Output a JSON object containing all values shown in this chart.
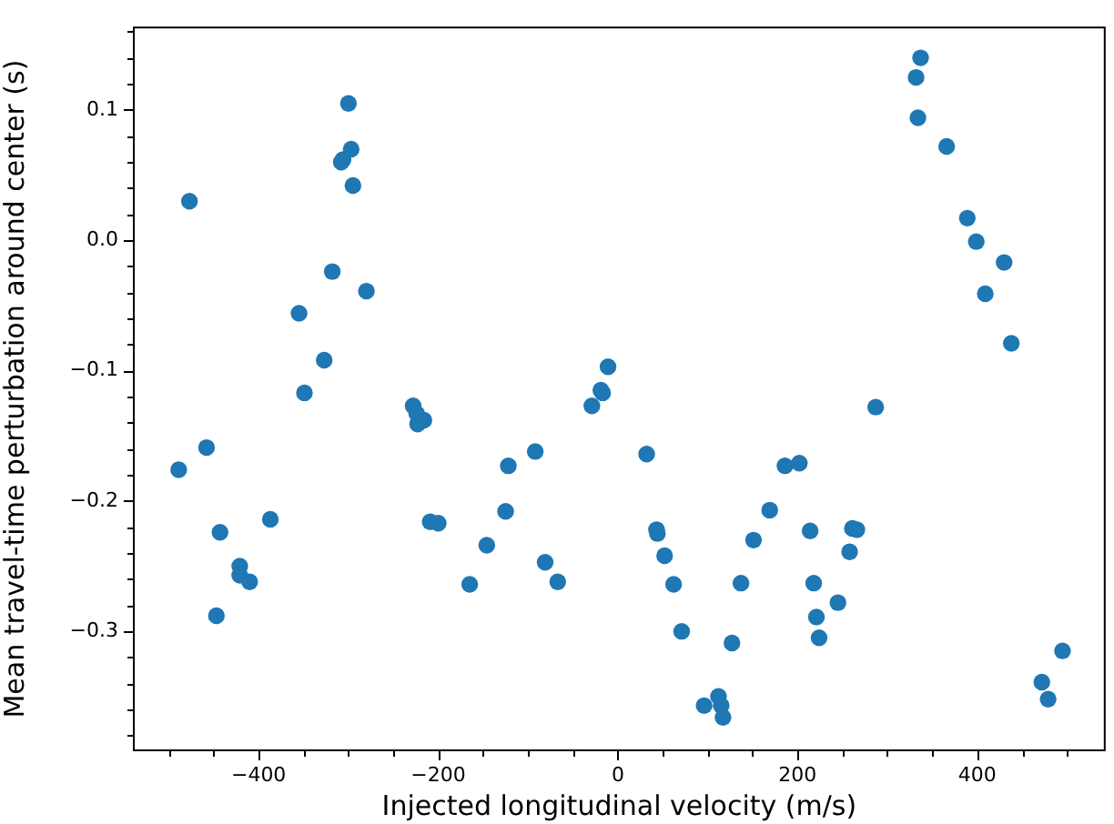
{
  "chart_data": {
    "type": "scatter",
    "xlabel": "Injected longitudinal velocity (m/s)",
    "ylabel": "Mean travel-time perturbation around center (s)",
    "marker": "circle",
    "grid": false,
    "legend": false,
    "xlim": [
      -540,
      543
    ],
    "ylim": [
      -0.392,
      0.164
    ],
    "xticks": [
      {
        "value": -500,
        "label": null
      },
      {
        "value": -450,
        "label": null
      },
      {
        "value": -400,
        "label": "−400"
      },
      {
        "value": -350,
        "label": null
      },
      {
        "value": -300,
        "label": null
      },
      {
        "value": -250,
        "label": null
      },
      {
        "value": -200,
        "label": "−200"
      },
      {
        "value": -150,
        "label": null
      },
      {
        "value": -100,
        "label": null
      },
      {
        "value": -50,
        "label": null
      },
      0,
      {
        "value": 50,
        "label": null
      },
      {
        "value": 100,
        "label": null
      },
      {
        "value": 150,
        "label": null
      },
      200,
      {
        "value": 250,
        "label": null
      },
      {
        "value": 300,
        "label": null
      },
      {
        "value": 350,
        "label": null
      },
      400,
      {
        "value": 450,
        "label": null
      },
      {
        "value": 500,
        "label": null
      }
    ],
    "yticks": [
      {
        "value": -0.38,
        "label": null
      },
      {
        "value": -0.36,
        "label": null
      },
      {
        "value": -0.34,
        "label": null
      },
      {
        "value": -0.32,
        "label": null
      },
      {
        "value": -0.3,
        "label": "−0.3"
      },
      {
        "value": -0.28,
        "label": null
      },
      {
        "value": -0.26,
        "label": null
      },
      {
        "value": -0.24,
        "label": null
      },
      {
        "value": -0.22,
        "label": null
      },
      {
        "value": -0.2,
        "label": "−0.2"
      },
      {
        "value": -0.18,
        "label": null
      },
      {
        "value": -0.16,
        "label": null
      },
      {
        "value": -0.14,
        "label": null
      },
      {
        "value": -0.12,
        "label": null
      },
      {
        "value": -0.1,
        "label": "−0.1"
      },
      {
        "value": -0.08,
        "label": null
      },
      {
        "value": -0.06,
        "label": null
      },
      {
        "value": -0.04,
        "label": null
      },
      {
        "value": -0.02,
        "label": null
      },
      {
        "value": 0,
        "label": "0.0"
      },
      {
        "value": 0.02,
        "label": null
      },
      {
        "value": 0.04,
        "label": null
      },
      {
        "value": 0.06,
        "label": null
      },
      {
        "value": 0.08,
        "label": null
      },
      0.1,
      {
        "value": 0.12,
        "label": null
      },
      {
        "value": 0.14,
        "label": null
      },
      {
        "value": 0.16,
        "label": null
      }
    ],
    "series": [
      {
        "color": "#1f77b4",
        "x": [
          -477,
          -300,
          -297,
          -308,
          -306,
          -295,
          -318,
          -355,
          -280,
          -327,
          -349,
          -489,
          -458,
          -443,
          -387,
          -421,
          -421,
          -410,
          -447,
          -228,
          -224,
          -223,
          -216,
          -209,
          -200,
          -146,
          -165,
          -122,
          -92,
          -125,
          -81,
          -67,
          -29,
          -19,
          -17,
          -11,
          337,
          332,
          334,
          366,
          389,
          399,
          430,
          409,
          438,
          287,
          32,
          186,
          202,
          169,
          43,
          44,
          214,
          261,
          266,
          151,
          52,
          258,
          62,
          137,
          218,
          245,
          221,
          224,
          71,
          127,
          96,
          112,
          115,
          117,
          495,
          472,
          479
        ],
        "values": [
          0.03,
          0.105,
          0.07,
          0.06,
          0.062,
          0.042,
          -0.024,
          -0.056,
          -0.039,
          -0.092,
          -0.117,
          -0.176,
          -0.159,
          -0.224,
          -0.214,
          -0.25,
          -0.257,
          -0.262,
          -0.288,
          -0.127,
          -0.133,
          -0.141,
          -0.138,
          -0.216,
          -0.217,
          -0.234,
          -0.264,
          -0.173,
          -0.162,
          -0.208,
          -0.247,
          -0.262,
          -0.127,
          -0.115,
          -0.117,
          -0.097,
          0.14,
          0.125,
          0.094,
          0.072,
          0.017,
          -0.001,
          -0.017,
          -0.041,
          -0.079,
          -0.128,
          -0.164,
          -0.173,
          -0.171,
          -0.207,
          -0.222,
          -0.225,
          -0.223,
          -0.221,
          -0.222,
          -0.23,
          -0.242,
          -0.239,
          -0.264,
          -0.263,
          -0.263,
          -0.278,
          -0.289,
          -0.305,
          -0.3,
          -0.309,
          -0.357,
          -0.35,
          -0.357,
          -0.366,
          -0.315,
          -0.339,
          -0.352
        ]
      }
    ]
  }
}
